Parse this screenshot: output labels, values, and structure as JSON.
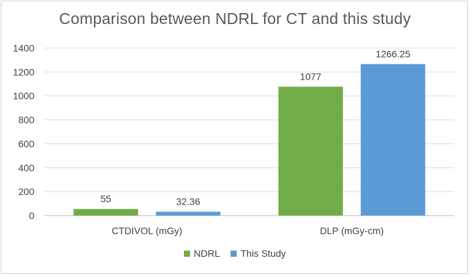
{
  "chart_data": {
    "type": "bar",
    "title": "Comparison between NDRL for CT and this study",
    "categories": [
      "CTDIVOL (mGy)",
      "DLP (mGy-cm)"
    ],
    "series": [
      {
        "name": "NDRL",
        "values": [
          55,
          1077
        ],
        "labels": [
          "55",
          "1077"
        ],
        "color": "#70ad47"
      },
      {
        "name": "This Study",
        "values": [
          32.36,
          1266.25
        ],
        "labels": [
          "32.36",
          "1266.25"
        ],
        "color": "#5b9bd5"
      }
    ],
    "ylim": [
      0,
      1400
    ],
    "yticks": [
      "0",
      "200",
      "400",
      "600",
      "800",
      "1000",
      "1200",
      "1400"
    ],
    "grid": true,
    "legend_position": "bottom"
  }
}
